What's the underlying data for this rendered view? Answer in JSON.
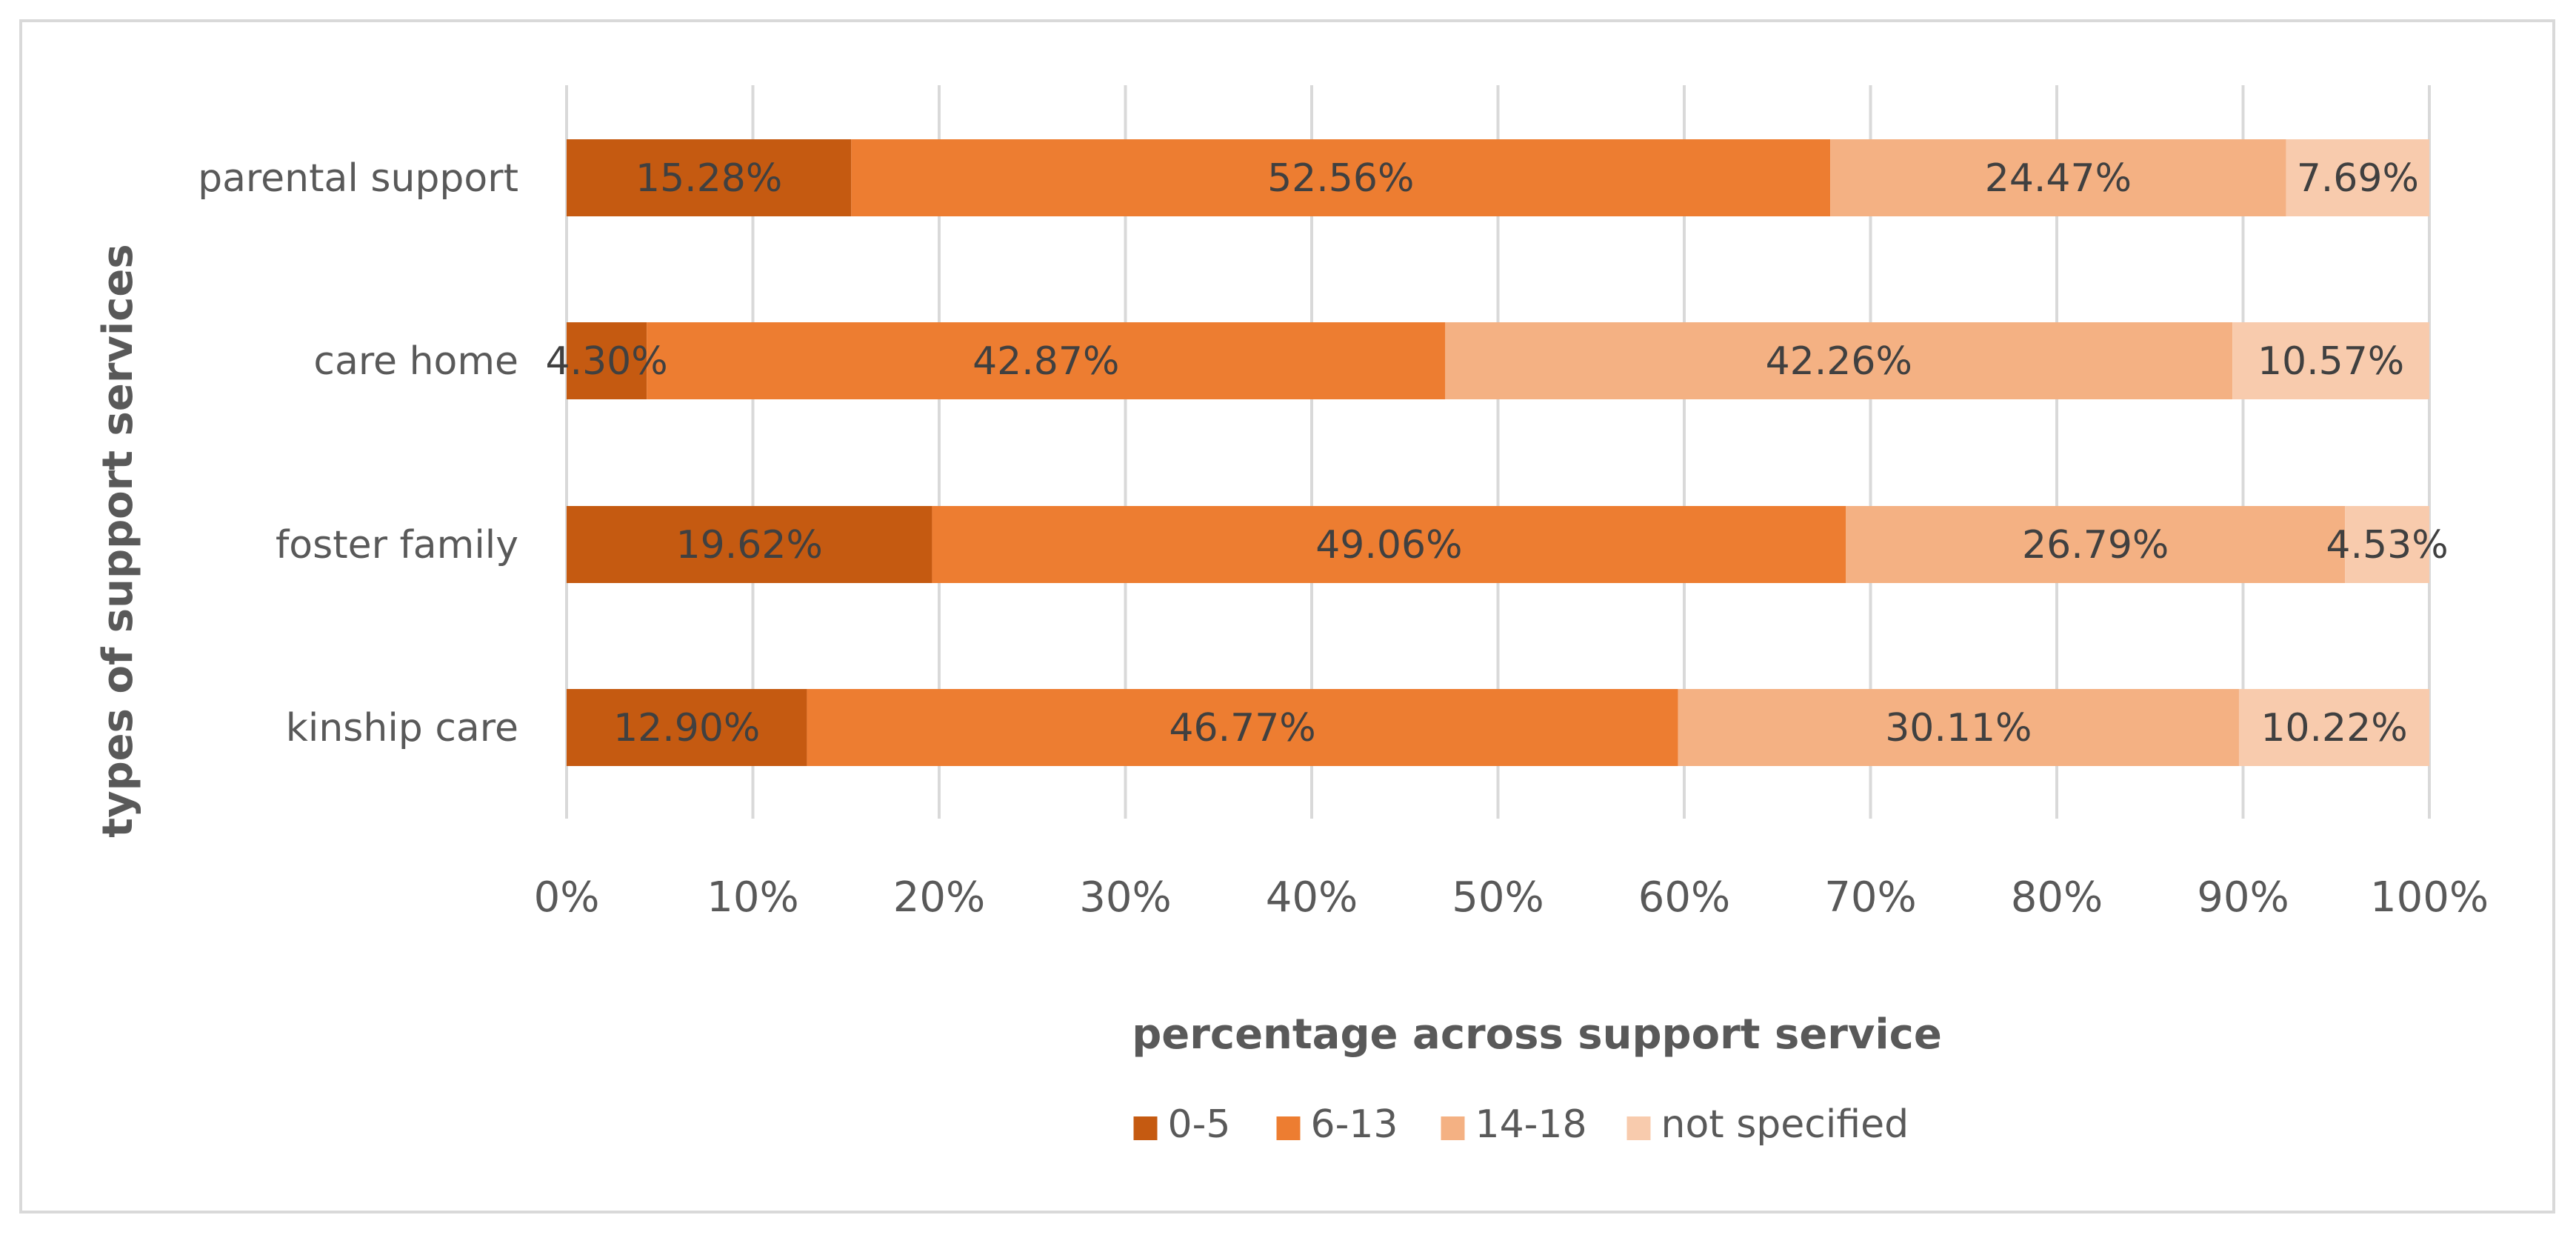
{
  "chart_data": {
    "type": "bar",
    "orientation": "horizontal",
    "stacked": "percent",
    "title": "",
    "xlabel": "percentage across support service",
    "ylabel": "types of support services",
    "xlim": [
      0,
      100
    ],
    "x_ticks": [
      "0%",
      "10%",
      "20%",
      "30%",
      "40%",
      "50%",
      "60%",
      "70%",
      "80%",
      "90%",
      "100%"
    ],
    "grid": true,
    "legend_position": "bottom",
    "categories": [
      "parental support",
      "care home",
      "foster family",
      "kinship care"
    ],
    "series": [
      {
        "name": "0-5",
        "color": "#c55a11",
        "values": [
          15.28,
          4.3,
          19.62,
          12.9
        ],
        "labels": [
          "15.28%",
          "4.30%",
          "19.62%",
          "12.90%"
        ]
      },
      {
        "name": "6-13",
        "color": "#ed7d31",
        "values": [
          52.56,
          42.87,
          49.06,
          46.77
        ],
        "labels": [
          "52.56%",
          "42.87%",
          "49.06%",
          "46.77%"
        ]
      },
      {
        "name": "14-18",
        "color": "#f4b183",
        "values": [
          24.47,
          42.26,
          26.79,
          30.11
        ],
        "labels": [
          "24.47%",
          "42.26%",
          "26.79%",
          "30.11%"
        ]
      },
      {
        "name": "not specified",
        "color": "#f8cbad",
        "values": [
          7.69,
          10.57,
          4.53,
          10.22
        ],
        "labels": [
          "7.69%",
          "10.57%",
          "4.53%",
          "10.22%"
        ]
      }
    ]
  },
  "colors": {
    "gridline": "#d9d9d9",
    "text": "#595959",
    "data_label": "#404040",
    "frame": "#d9d9d9"
  }
}
